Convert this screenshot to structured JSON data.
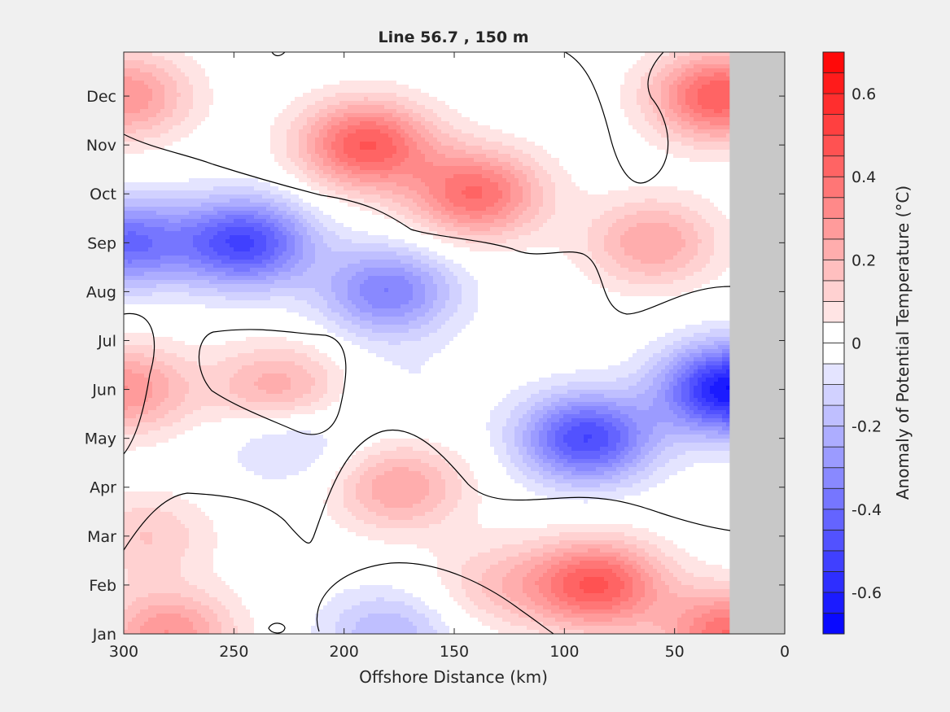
{
  "chart_data": {
    "type": "heatmap",
    "subtype": "filled-contour",
    "title": "Line 56.7 , 150 m",
    "xlabel": "Offshore Distance (km)",
    "ylabel": "",
    "xlim": [
      300,
      0
    ],
    "x_reversed": true,
    "x_ticks": [
      "300",
      "250",
      "200",
      "150",
      "100",
      "50",
      "0"
    ],
    "y_categories": [
      "Jan",
      "Feb",
      "Mar",
      "Apr",
      "May",
      "Jun",
      "Jul",
      "Aug",
      "Sep",
      "Oct",
      "Nov",
      "Dec"
    ],
    "colorbar": {
      "label": "Anomaly of Potential Temperature (°C)",
      "range": [
        -0.7,
        0.7
      ],
      "step": 0.05,
      "ticks": [
        "-0.6",
        "-0.4",
        "-0.2",
        "0",
        "0.2",
        "0.4",
        "0.6"
      ],
      "colormap": "blue-white-red",
      "low_color": "#0000ff",
      "high_color": "#ff0000",
      "zero_color": "#ffffff"
    },
    "no_data_region_km": [
      0,
      25
    ],
    "no_data_color": "#c8c8c8",
    "zero_contour": true,
    "anomaly_centers": [
      {
        "x_km": 300,
        "month": "Dec",
        "value": 0.3
      },
      {
        "x_km": 190,
        "month": "Nov",
        "value": 0.45
      },
      {
        "x_km": 140,
        "month": "Oct",
        "value": 0.4
      },
      {
        "x_km": 30,
        "month": "Dec",
        "value": 0.45
      },
      {
        "x_km": 60,
        "month": "Sep",
        "value": 0.25
      },
      {
        "x_km": 300,
        "month": "Sep",
        "value": -0.4
      },
      {
        "x_km": 245,
        "month": "Sep",
        "value": -0.5
      },
      {
        "x_km": 180,
        "month": "Aug",
        "value": -0.35
      },
      {
        "x_km": 300,
        "month": "Jun",
        "value": 0.3
      },
      {
        "x_km": 230,
        "month": "Jun",
        "value": 0.25
      },
      {
        "x_km": 170,
        "month": "Jun",
        "value": -0.05
      },
      {
        "x_km": 90,
        "month": "May",
        "value": -0.5
      },
      {
        "x_km": 25,
        "month": "Jun",
        "value": -0.65
      },
      {
        "x_km": 225,
        "month": "May",
        "value": -0.15
      },
      {
        "x_km": 175,
        "month": "Apr",
        "value": 0.25
      },
      {
        "x_km": 85,
        "month": "Feb",
        "value": 0.45
      },
      {
        "x_km": 280,
        "month": "Jan",
        "value": 0.3
      },
      {
        "x_km": 290,
        "month": "Mar",
        "value": 0.15
      },
      {
        "x_km": 180,
        "month": "Jan",
        "value": -0.2
      },
      {
        "x_km": 25,
        "month": "Jan",
        "value": 0.4
      },
      {
        "x_km": 130,
        "month": "Feb",
        "value": 0.15
      }
    ]
  }
}
